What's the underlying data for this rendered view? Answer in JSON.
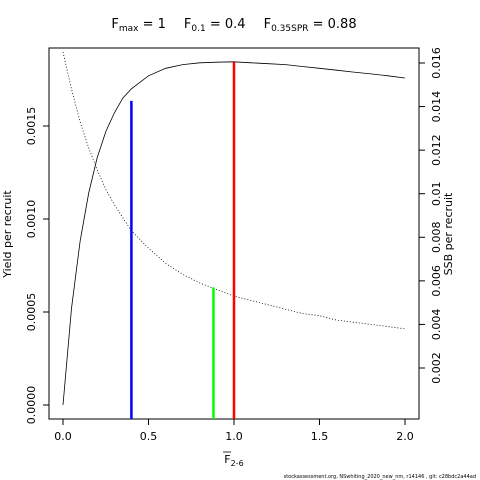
{
  "title": {
    "fmax_label": "F",
    "fmax_sub": "max",
    "fmax_value": " = 1",
    "f01_label": "F",
    "f01_sub": "0.1",
    "f01_value": " = 0.4",
    "fspr_label": "F",
    "fspr_sub": "0.35SPR",
    "fspr_value": " = 0.88"
  },
  "footer": "stockassessment.org, NSwhiting_2020_new_nm, r14146 , git: c28bdc2a44ad",
  "chart_data": {
    "type": "line",
    "xlabel_base": "F",
    "xlabel_sub": "2-6",
    "ylabel_left": "Yield per recruit",
    "ylabel_right": "SSB per recruit",
    "xlim": [
      0,
      2
    ],
    "ylim_left": [
      0,
      0.00185
    ],
    "ylim_right": [
      0,
      0.0166
    ],
    "xticks": [
      "0.0",
      "0.5",
      "1.0",
      "1.5",
      "2.0"
    ],
    "yticks_left": [
      "0.0000",
      "0.0005",
      "0.0010",
      "0.0015"
    ],
    "yticks_right": [
      "0.002",
      "0.004",
      "0.006",
      "0.008",
      "0.01",
      "0.012",
      "0.014",
      "0.016"
    ],
    "series": [
      {
        "axis": "left",
        "style": "solid",
        "x": [
          0,
          0.05,
          0.1,
          0.15,
          0.2,
          0.25,
          0.3,
          0.35,
          0.4,
          0.5,
          0.6,
          0.7,
          0.8,
          0.9,
          1.0,
          1.1,
          1.2,
          1.3,
          1.4,
          1.5,
          1.6,
          1.7,
          1.8,
          1.9,
          2.0
        ],
        "y": [
          0.0,
          0.00052,
          0.00088,
          0.00114,
          0.00133,
          0.00147,
          0.00157,
          0.00165,
          0.0017,
          0.00177,
          0.00181,
          0.00183,
          0.00184,
          0.001843,
          0.001845,
          0.00184,
          0.001835,
          0.00183,
          0.00182,
          0.00181,
          0.0018,
          0.00179,
          0.00178,
          0.00177,
          0.001758
        ]
      },
      {
        "axis": "right",
        "style": "dotted",
        "x": [
          0,
          0.05,
          0.1,
          0.15,
          0.2,
          0.25,
          0.3,
          0.35,
          0.4,
          0.5,
          0.6,
          0.7,
          0.8,
          0.9,
          1.0,
          1.1,
          1.2,
          1.3,
          1.4,
          1.5,
          1.6,
          1.7,
          1.8,
          1.9,
          2.0
        ],
        "y": [
          0.0165,
          0.0148,
          0.0133,
          0.0121,
          0.0111,
          0.0102,
          0.0095,
          0.0089,
          0.0083,
          0.0075,
          0.0068,
          0.0063,
          0.0059,
          0.0056,
          0.0053,
          0.0051,
          0.0049,
          0.0047,
          0.0045,
          0.0044,
          0.0042,
          0.0041,
          0.004,
          0.0039,
          0.0038
        ]
      }
    ],
    "reference_lines": [
      {
        "x": 0.4,
        "y": 0.001635,
        "axis": "left",
        "color": "#0000ff"
      },
      {
        "x": 1.0,
        "y": 0.001845,
        "axis": "left",
        "color": "#ff0000"
      },
      {
        "x": 0.88,
        "y": 0.0057,
        "axis": "right",
        "color": "#00ff00"
      }
    ]
  }
}
